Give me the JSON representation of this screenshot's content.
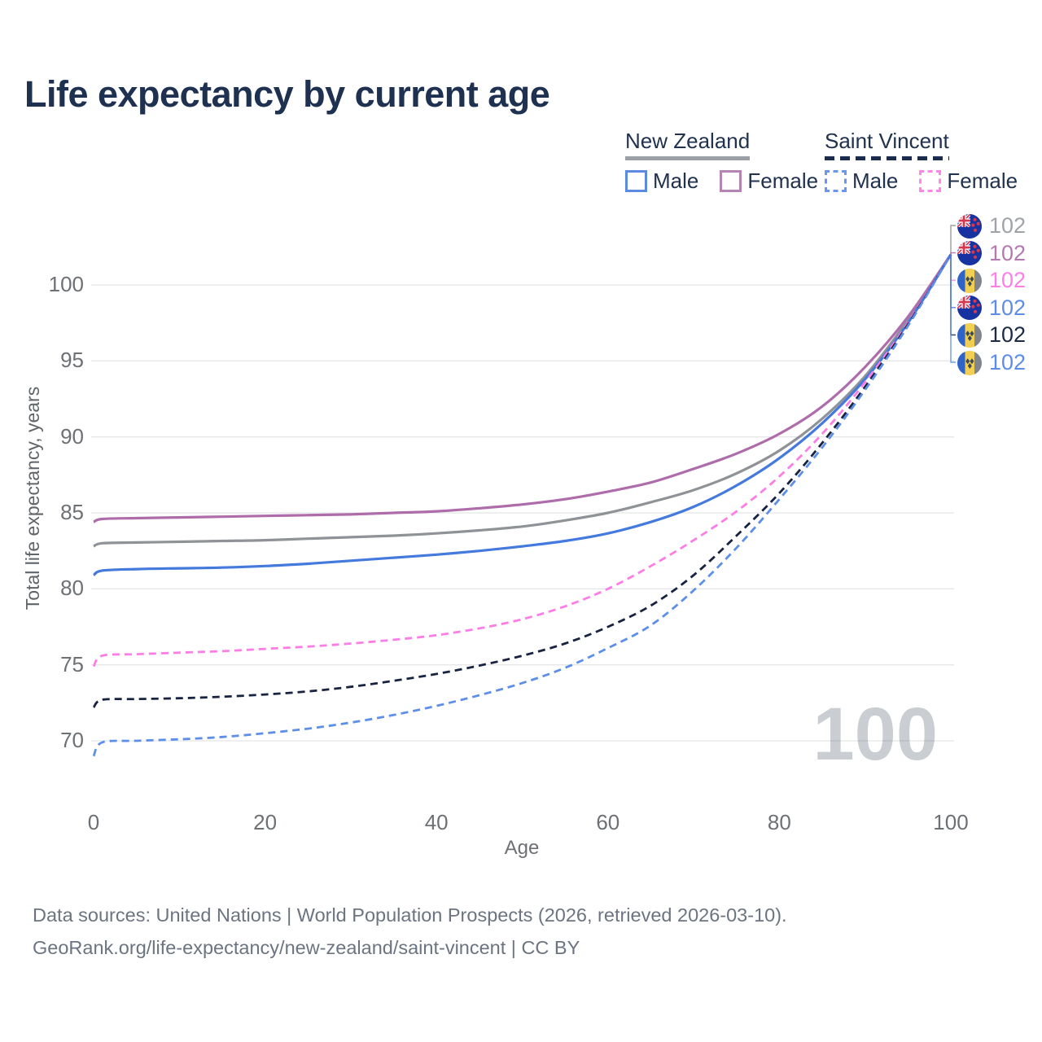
{
  "title": "Life expectancy by current age",
  "watermark": "100",
  "footer": {
    "line1": "Data sources: United Nations | World Population Prospects (2026, retrieved 2026-03-10).",
    "line2": "GeoRank.org/life-expectancy/new-zealand/saint-vincent | CC BY"
  },
  "legend": {
    "groups": [
      {
        "name": "New Zealand",
        "line_style": "solid",
        "underline_color": "#9aa0a6",
        "items": [
          {
            "label": "Male",
            "color": "#5b8be0",
            "dashed": false
          },
          {
            "label": "Female",
            "color": "#b584b3",
            "dashed": false
          }
        ]
      },
      {
        "name": "Saint Vincent",
        "line_style": "dashed",
        "underline_color": "#1b2c4e",
        "items": [
          {
            "label": "Male",
            "color": "#6a97ea",
            "dashed": true
          },
          {
            "label": "Female",
            "color": "#fd86ea",
            "dashed": true
          }
        ]
      }
    ]
  },
  "chart_data": {
    "type": "line",
    "title": "Life expectancy by current age",
    "xlabel": "Age",
    "ylabel": "Total life expectancy, years",
    "xlim": [
      0,
      100
    ],
    "ylim": [
      67,
      105
    ],
    "x_ticks": [
      0,
      20,
      40,
      60,
      80,
      100
    ],
    "y_ticks": [
      70,
      75,
      80,
      85,
      90,
      95,
      100
    ],
    "grid": "horizontal",
    "legend_position": "top-right",
    "x": [
      0,
      1,
      5,
      10,
      15,
      20,
      25,
      30,
      35,
      40,
      45,
      50,
      55,
      60,
      65,
      70,
      75,
      80,
      85,
      90,
      95,
      100
    ],
    "series": [
      {
        "name": "New Zealand — Total",
        "country": "New Zealand",
        "sex": "both",
        "flag": "nz",
        "color": "#8f9296",
        "dashed": false,
        "end_label": "102",
        "label_color": "#9fa3a8",
        "label_row": 0,
        "values": [
          82.8,
          83.0,
          83.05,
          83.1,
          83.15,
          83.2,
          83.3,
          83.4,
          83.5,
          83.65,
          83.85,
          84.1,
          84.5,
          85.0,
          85.7,
          86.5,
          87.6,
          89.1,
          91.2,
          94.0,
          97.7,
          102
        ]
      },
      {
        "name": "New Zealand — Female",
        "country": "New Zealand",
        "sex": "female",
        "flag": "nz",
        "color": "#ae6cab",
        "dashed": false,
        "end_label": "102",
        "label_color": "#b379b0",
        "label_row": 1,
        "values": [
          84.4,
          84.6,
          84.65,
          84.7,
          84.75,
          84.8,
          84.85,
          84.9,
          85.0,
          85.1,
          85.3,
          85.55,
          85.9,
          86.4,
          87.0,
          87.9,
          88.9,
          90.2,
          92.0,
          94.6,
          97.9,
          102
        ]
      },
      {
        "name": "New Zealand — Male",
        "country": "New Zealand",
        "sex": "male",
        "flag": "nz",
        "color": "#4479dd",
        "dashed": false,
        "end_label": "102",
        "label_color": "#5d8de8",
        "label_row": 3,
        "values": [
          80.9,
          81.2,
          81.3,
          81.35,
          81.4,
          81.5,
          81.65,
          81.85,
          82.05,
          82.25,
          82.5,
          82.8,
          83.15,
          83.65,
          84.4,
          85.4,
          86.8,
          88.6,
          90.9,
          93.8,
          97.5,
          102
        ]
      },
      {
        "name": "Saint Vincent — Female",
        "country": "Saint Vincent",
        "sex": "female",
        "flag": "vc",
        "color": "#fc7de6",
        "dashed": true,
        "end_label": "102",
        "label_color": "#fd7ee9",
        "label_row": 2,
        "values": [
          74.9,
          75.6,
          75.7,
          75.8,
          75.9,
          76.05,
          76.2,
          76.4,
          76.65,
          76.95,
          77.4,
          78.0,
          78.85,
          80.0,
          81.5,
          83.2,
          85.1,
          87.4,
          90.2,
          93.6,
          97.5,
          102
        ]
      },
      {
        "name": "Saint Vincent — Total",
        "country": "Saint Vincent",
        "sex": "both",
        "flag": "vc",
        "color": "#17233f",
        "dashed": true,
        "end_label": "102",
        "label_color": "#1c2a45",
        "label_row": 4,
        "values": [
          72.2,
          72.7,
          72.75,
          72.8,
          72.9,
          73.05,
          73.25,
          73.55,
          73.95,
          74.4,
          74.95,
          75.6,
          76.4,
          77.5,
          78.9,
          80.9,
          83.5,
          86.3,
          89.6,
          93.3,
          97.4,
          102
        ]
      },
      {
        "name": "Saint Vincent — Male",
        "country": "Saint Vincent",
        "sex": "male",
        "flag": "vc",
        "color": "#5e8fe8",
        "dashed": true,
        "end_label": "102",
        "label_color": "#5d8de8",
        "label_row": 5,
        "values": [
          69.0,
          69.9,
          70.0,
          70.1,
          70.25,
          70.5,
          70.8,
          71.2,
          71.7,
          72.3,
          73.0,
          73.8,
          74.8,
          76.1,
          77.6,
          79.9,
          82.7,
          85.9,
          89.3,
          93.1,
          97.3,
          102
        ]
      }
    ],
    "colors": {
      "nz_male": "#4479dd",
      "nz_female": "#ae6cab",
      "nz_total": "#8f9296",
      "vc_male": "#5e8fe8",
      "vc_female": "#fc7de6",
      "vc_total": "#17233f",
      "grid": "#e7e9ec",
      "tick_text": "#6d7175",
      "title_text": "#1e3150",
      "watermark": "#caced3"
    }
  }
}
